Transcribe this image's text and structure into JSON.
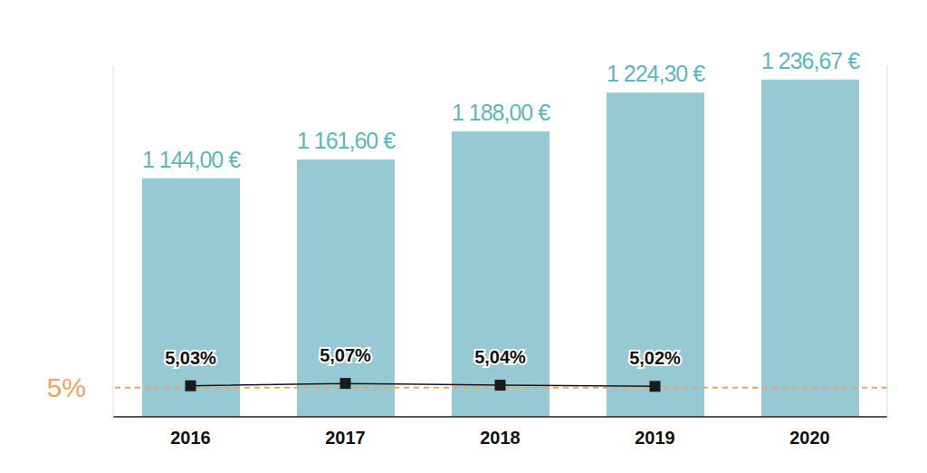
{
  "chart_data": {
    "type": "bar",
    "categories": [
      "2016",
      "2017",
      "2018",
      "2019",
      "2020"
    ],
    "series": [
      {
        "type": "bar",
        "color": "#96c9d3",
        "values": [
          1144.0,
          1161.6,
          1188.0,
          1224.3,
          1236.67
        ],
        "value_labels": [
          "1 144,00 €",
          "1 161,60 €",
          "1 188,00 €",
          "1 224,30 €",
          "1 236,67 €"
        ]
      },
      {
        "type": "line",
        "axis": "y2",
        "color": "#1a1a1a",
        "marker": "square",
        "line_style": "solid",
        "values": [
          5.03,
          5.07,
          5.04,
          5.02,
          null
        ],
        "value_labels": [
          "5,03%",
          "5,07%",
          "5,04%",
          "5,02%",
          null
        ]
      }
    ],
    "ylim": [
      920,
      1250
    ],
    "y2lim": [
      4.5,
      10.5
    ],
    "data_labels": true,
    "tick_labels": "x",
    "grid": false,
    "annotations": [
      {
        "text": "5%",
        "value": 5,
        "axis": "y2",
        "color": "#f0a35e",
        "line_style": "dashed"
      }
    ]
  }
}
